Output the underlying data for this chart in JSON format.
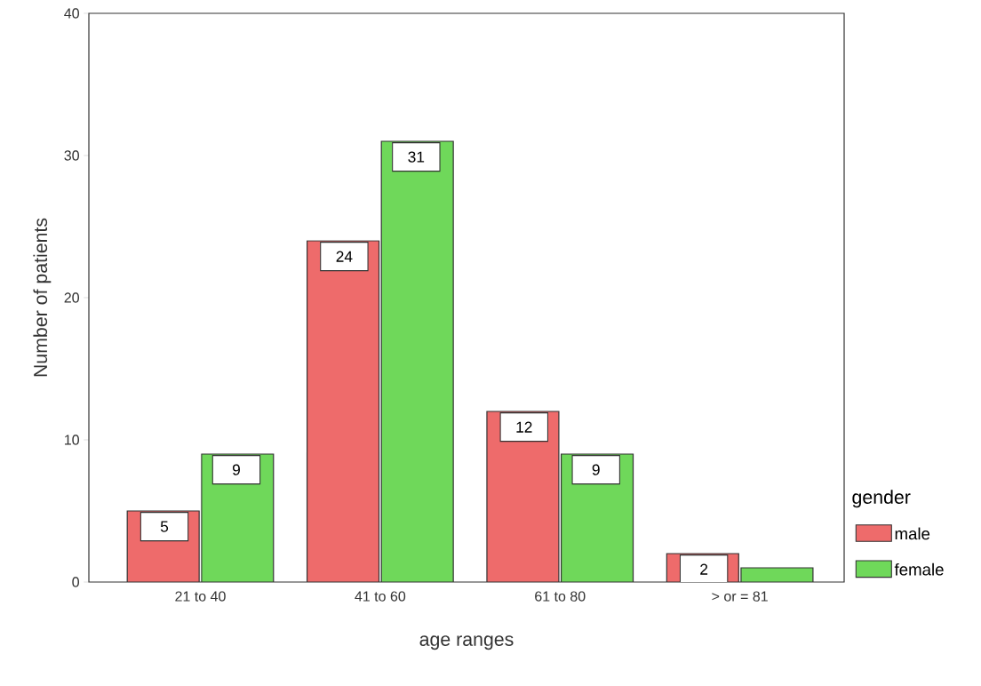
{
  "chart_data": {
    "type": "bar",
    "xlabel": "age ranges",
    "ylabel": "Number of patients",
    "legend_title": "gender",
    "categories": [
      "21 to 40",
      "41 to 60",
      "61 to 80",
      "> or = 81"
    ],
    "series": [
      {
        "name": "male",
        "color": "#ee6b6b",
        "values": [
          5,
          24,
          12,
          2
        ],
        "value_labels": [
          "5",
          "24",
          "12",
          "2"
        ]
      },
      {
        "name": "female",
        "color": "#6fd85a",
        "values": [
          9,
          31,
          9,
          1
        ],
        "value_labels": [
          "9",
          "31",
          "9",
          null
        ]
      }
    ],
    "ylim": [
      0,
      40
    ],
    "yticks": [
      0,
      10,
      20,
      30,
      40
    ],
    "legend": "right",
    "grid": false
  }
}
